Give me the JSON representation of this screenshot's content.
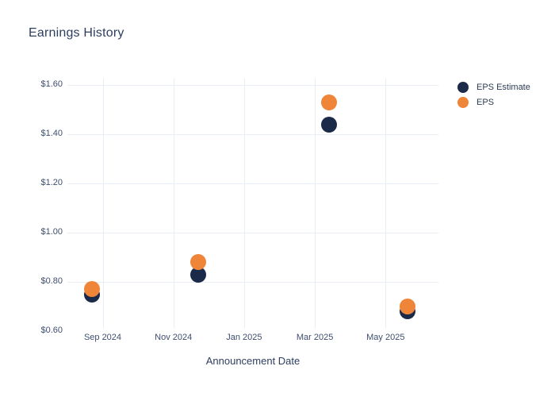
{
  "chart_data": {
    "type": "scatter",
    "title": "Earnings History",
    "xlabel": "Announcement Date",
    "ylabel": "",
    "grid": true,
    "legend_position": "right",
    "background": "#ffffff",
    "grid_color": "#e9eef6",
    "title_color": "#2d3e5f",
    "tick_color": "#3e4e6e",
    "x_ticks": [
      {
        "months_from_sep_2024": 0,
        "label": "Sep 2024"
      },
      {
        "months_from_sep_2024": 2,
        "label": "Nov 2024"
      },
      {
        "months_from_sep_2024": 4,
        "label": "Jan 2025"
      },
      {
        "months_from_sep_2024": 6,
        "label": "Mar 2025"
      },
      {
        "months_from_sep_2024": 8,
        "label": "May 2025"
      }
    ],
    "y_ticks": [
      {
        "value": 1.6,
        "label": "$1.60"
      },
      {
        "value": 1.4,
        "label": "$1.40"
      },
      {
        "value": 1.2,
        "label": "$1.20"
      },
      {
        "value": 1.0,
        "label": "$1.00"
      },
      {
        "value": 0.8,
        "label": "$0.80"
      },
      {
        "value": 0.6,
        "label": "$0.60"
      }
    ],
    "ylim": [
      0.617,
      1.626
    ],
    "series": [
      {
        "name": "EPS Estimate",
        "color": "#1b2a49",
        "points": [
          {
            "date": "2024-08-22",
            "value": 0.75
          },
          {
            "date": "2024-11-22",
            "value": 0.83
          },
          {
            "date": "2025-03-13",
            "value": 1.44
          },
          {
            "date": "2025-05-20",
            "value": 0.68
          }
        ]
      },
      {
        "name": "EPS",
        "color": "#ef8539",
        "points": [
          {
            "date": "2024-08-22",
            "value": 0.77
          },
          {
            "date": "2024-11-22",
            "value": 0.88
          },
          {
            "date": "2025-03-13",
            "value": 1.53
          },
          {
            "date": "2025-05-20",
            "value": 0.7
          }
        ]
      }
    ]
  }
}
